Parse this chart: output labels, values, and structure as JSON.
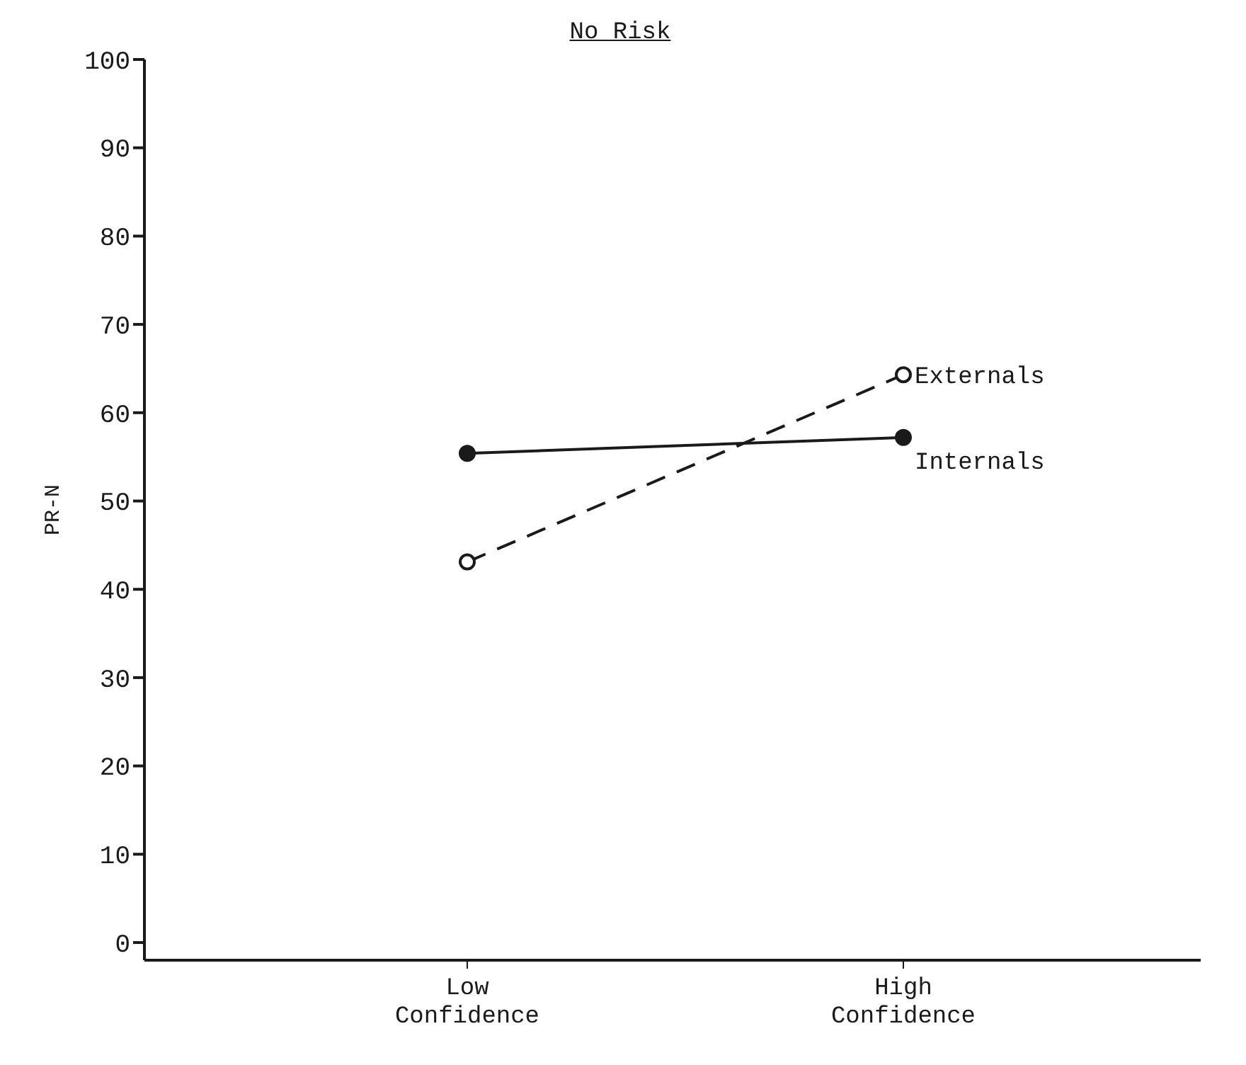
{
  "chart_data": {
    "type": "line",
    "title": "No Risk",
    "ylabel": "PR-N",
    "categories": [
      "Low Confidence",
      "High Confidence"
    ],
    "series": [
      {
        "name": "Internals",
        "color": "#1a1a1a",
        "values": [
          55.4,
          57.2
        ],
        "line_style": "solid",
        "marker": "circle"
      },
      {
        "name": "Externals",
        "color": "#1a1a1a",
        "values": [
          43.1,
          64.3
        ],
        "line_style": "dashed",
        "marker": "circle"
      }
    ],
    "ylim": [
      -2,
      100
    ],
    "yticks": [
      0,
      10,
      20,
      30,
      40,
      50,
      60,
      70,
      80,
      90,
      100
    ],
    "grid": false,
    "legend": false
  }
}
